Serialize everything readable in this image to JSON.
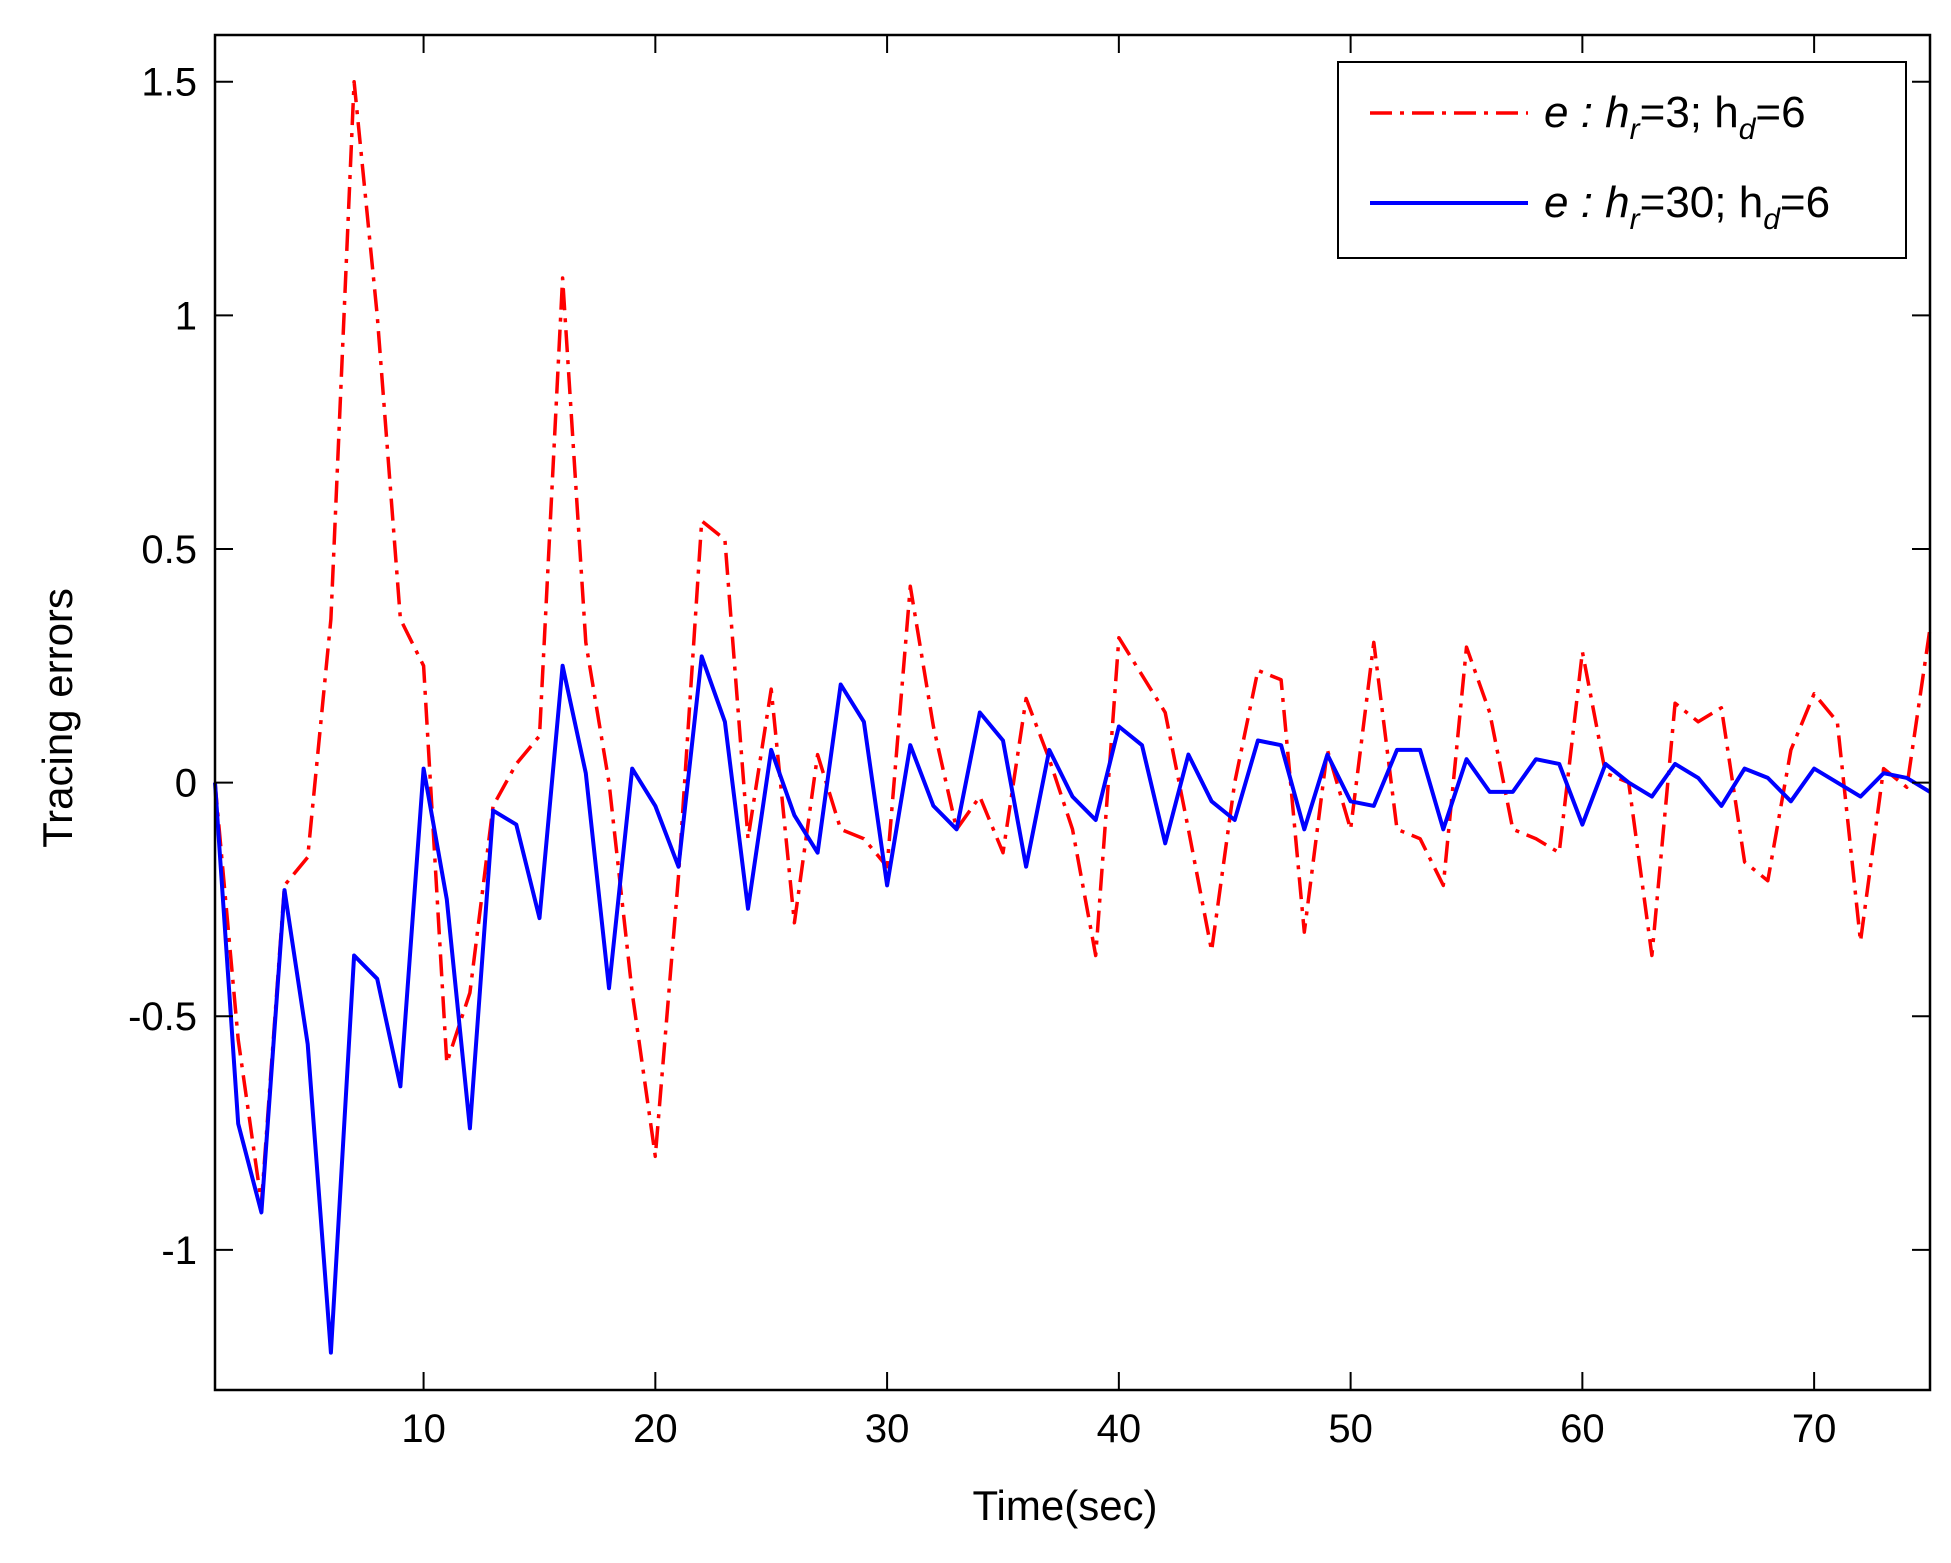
{
  "chart_data": {
    "type": "line",
    "title": "",
    "xlabel": "Time(sec)",
    "ylabel": "Tracing errors",
    "xlim": [
      1,
      75
    ],
    "ylim": [
      -1.3,
      1.6
    ],
    "xticks": [
      10,
      20,
      30,
      40,
      50,
      60,
      70
    ],
    "xtick_labels": [
      "10",
      "20",
      "30",
      "40",
      "50",
      "60",
      "70"
    ],
    "yticks": [
      1.5,
      1,
      0.5,
      0,
      -0.5,
      -1
    ],
    "ytick_labels": [
      "1.5",
      "1",
      "0.5",
      "0",
      "-0.5",
      "-1"
    ],
    "grid": false,
    "legend_position": "top-right",
    "colors": {
      "red": "#ff0000",
      "blue": "#0000ff",
      "axis": "#000000"
    },
    "x": [
      1,
      2,
      3,
      4,
      5,
      6,
      7,
      8,
      9,
      10,
      11,
      12,
      13,
      14,
      15,
      16,
      17,
      18,
      19,
      20,
      21,
      22,
      23,
      24,
      25,
      26,
      27,
      28,
      29,
      30,
      31,
      32,
      33,
      34,
      35,
      36,
      37,
      38,
      39,
      40,
      41,
      42,
      43,
      44,
      45,
      46,
      47,
      48,
      49,
      50,
      51,
      52,
      53,
      54,
      55,
      56,
      57,
      58,
      59,
      60,
      61,
      62,
      63,
      64,
      65,
      66,
      67,
      68,
      69,
      70,
      71,
      72,
      73,
      74,
      75
    ],
    "series": [
      {
        "name": "e : h_r=3; h_d=6",
        "legend": {
          "prefix": "e : h",
          "sub1": "r",
          "mid": "=3; h",
          "sub2": "d",
          "suffix": "=6"
        },
        "color": "#ff0000",
        "style": "dashdot",
        "values": [
          0,
          -0.55,
          -0.9,
          -0.22,
          -0.16,
          0.35,
          1.5,
          1.0,
          0.35,
          0.25,
          -0.6,
          -0.45,
          -0.05,
          0.04,
          0.1,
          1.08,
          0.3,
          0.0,
          -0.45,
          -0.8,
          -0.2,
          0.56,
          0.52,
          -0.12,
          0.2,
          -0.3,
          0.06,
          -0.1,
          -0.12,
          -0.18,
          0.42,
          0.12,
          -0.1,
          -0.03,
          -0.15,
          0.18,
          0.05,
          -0.1,
          -0.37,
          0.31,
          0.23,
          0.15,
          -0.1,
          -0.36,
          0.0,
          0.24,
          0.22,
          -0.32,
          0.07,
          -0.1,
          0.3,
          -0.1,
          -0.12,
          -0.22,
          0.29,
          0.15,
          -0.1,
          -0.12,
          -0.15,
          0.28,
          0.02,
          0.0,
          -0.37,
          0.17,
          0.13,
          0.16,
          -0.17,
          -0.21,
          0.07,
          0.19,
          0.13,
          -0.34,
          0.03,
          -0.01,
          0.33
        ]
      },
      {
        "name": "e : h_r=30; h_d=6",
        "legend": {
          "prefix": "e : h",
          "sub1": "r",
          "mid": "=30; h",
          "sub2": "d",
          "suffix": "=6"
        },
        "color": "#0000ff",
        "style": "solid",
        "values": [
          0,
          -0.73,
          -0.92,
          -0.23,
          -0.56,
          -1.22,
          -0.37,
          -0.42,
          -0.65,
          0.03,
          -0.25,
          -0.74,
          -0.06,
          -0.09,
          -0.29,
          0.25,
          0.02,
          -0.44,
          0.03,
          -0.05,
          -0.18,
          0.27,
          0.13,
          -0.27,
          0.07,
          -0.07,
          -0.15,
          0.21,
          0.13,
          -0.22,
          0.08,
          -0.05,
          -0.1,
          0.15,
          0.09,
          -0.18,
          0.07,
          -0.03,
          -0.08,
          0.12,
          0.08,
          -0.13,
          0.06,
          -0.04,
          -0.08,
          0.09,
          0.08,
          -0.1,
          0.06,
          -0.04,
          -0.05,
          0.07,
          0.07,
          -0.1,
          0.05,
          -0.02,
          -0.02,
          0.05,
          0.04,
          -0.09,
          0.04,
          0.0,
          -0.03,
          0.04,
          0.01,
          -0.05,
          0.03,
          0.01,
          -0.04,
          0.03,
          0.0,
          -0.03,
          0.02,
          0.01,
          -0.02
        ]
      }
    ]
  }
}
